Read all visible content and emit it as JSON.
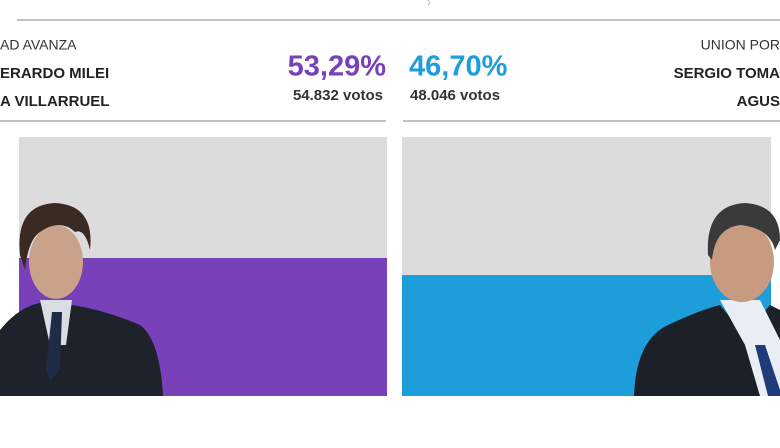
{
  "candidates": [
    {
      "party": "AD AVANZA",
      "name": "ERARDO MILEI",
      "running_mate": "A VILLARRUEL",
      "percent": {
        "value": 53.29,
        "label": "53,29%"
      },
      "votes": {
        "value": 54832,
        "label": "54.832 votos"
      },
      "color": "#7941b9"
    },
    {
      "party": "UNION POR",
      "name": "SERGIO TOMA",
      "running_mate": "AGUS",
      "percent": {
        "value": 46.7,
        "label": "46,70%"
      },
      "votes": {
        "value": 48046,
        "label": "48.046 votos"
      },
      "color": "#1e9ddb"
    }
  ]
}
